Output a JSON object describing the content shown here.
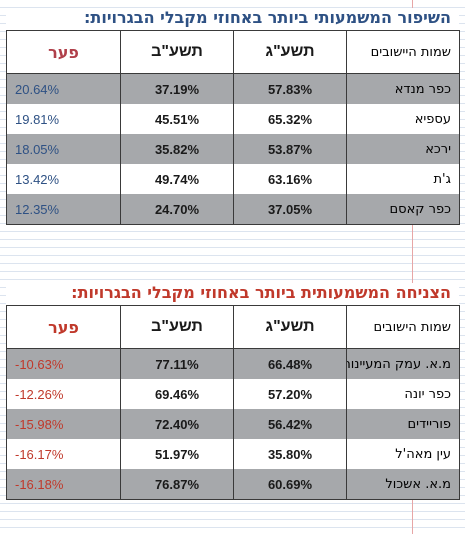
{
  "sections": [
    {
      "title": "השיפור המשמעותי ביותר באחוזי מקבלי הבגרויות:",
      "headers": [
        "שמות היישובים",
        "תשע\"ג",
        "תשע\"ב",
        "פער"
      ],
      "rows": [
        {
          "name": "כפר מנדא",
          "y_2013": "57.83%",
          "y_2012": "37.19%",
          "gap": "20.64%"
        },
        {
          "name": "עספיא",
          "y_2013": "65.32%",
          "y_2012": "45.51%",
          "gap": "19.81%"
        },
        {
          "name": "ירכא",
          "y_2013": "53.87%",
          "y_2012": "35.82%",
          "gap": "18.05%"
        },
        {
          "name": "ג'ת",
          "y_2013": "63.16%",
          "y_2012": "49.74%",
          "gap": "13.42%"
        },
        {
          "name": "כפר קאסם",
          "y_2013": "37.05%",
          "y_2012": "24.70%",
          "gap": "12.35%"
        }
      ]
    },
    {
      "title": "הצניחה המשמעותית ביותר באחוזי מקבלי הבגרויות:",
      "headers": [
        "שמות הישובים",
        "תשע\"ג",
        "תשע\"ב",
        "פער"
      ],
      "rows": [
        {
          "name": "מ.א. עמק המעיינות",
          "y_2013": "66.48%",
          "y_2012": "77.11%",
          "gap": "-10.63%"
        },
        {
          "name": "כפר יונה",
          "y_2013": "57.20%",
          "y_2012": "69.46%",
          "gap": "-12.26%"
        },
        {
          "name": "פוריידים",
          "y_2013": "56.42%",
          "y_2012": "72.40%",
          "gap": "-15.98%"
        },
        {
          "name": "עין מאה'ל",
          "y_2013": "35.80%",
          "y_2012": "51.97%",
          "gap": "-16.17%"
        },
        {
          "name": "מ.א. אשכול",
          "y_2013": "60.69%",
          "y_2012": "76.87%",
          "gap": "-16.18%"
        }
      ]
    }
  ],
  "colors": {
    "improvement_accent": "#2e5184",
    "decline_accent": "#c0392b",
    "row_shade": "#a6a8ab"
  }
}
